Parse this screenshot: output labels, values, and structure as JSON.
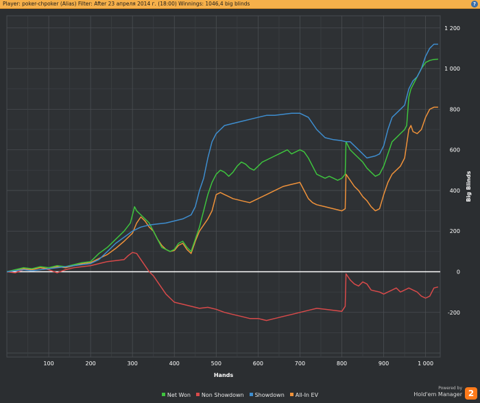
{
  "header": {
    "title": "Player: poker-chpoker (Alias) Filter: After 23 апреля 2014 г. (18:00) Winnings: 1046,4 big blinds",
    "help_label": "?"
  },
  "brand": {
    "powered_by": "Powered by",
    "name": "Hold'em Manager",
    "logo_text": "2"
  },
  "chart_data": {
    "type": "line",
    "xlabel": "Hands",
    "ylabel": "Big Blinds",
    "xlim": [
      0,
      1035
    ],
    "ylim": [
      -420,
      1260
    ],
    "x_ticks": [
      100,
      200,
      300,
      400,
      500,
      600,
      700,
      800,
      900,
      1000
    ],
    "x_tick_labels": [
      "100",
      "200",
      "300",
      "400",
      "500",
      "600",
      "700",
      "800",
      "900",
      "1 000"
    ],
    "y_ticks": [
      -200,
      0,
      200,
      400,
      600,
      800,
      1000,
      1200
    ],
    "y_tick_labels": [
      "-200",
      "0",
      "200",
      "400",
      "600",
      "800",
      "1 000",
      "1 200"
    ],
    "grid": true,
    "legend_position": "bottom",
    "zero_line": true,
    "series": [
      {
        "name": "Net Won",
        "color": "#3ec43e",
        "x": [
          0,
          20,
          40,
          60,
          80,
          100,
          120,
          140,
          160,
          180,
          200,
          210,
          220,
          240,
          260,
          280,
          295,
          300,
          305,
          310,
          320,
          330,
          340,
          350,
          360,
          370,
          380,
          390,
          400,
          410,
          420,
          430,
          440,
          450,
          460,
          465,
          470,
          475,
          480,
          490,
          500,
          510,
          520,
          530,
          540,
          550,
          560,
          570,
          580,
          590,
          600,
          610,
          620,
          630,
          640,
          650,
          660,
          670,
          680,
          690,
          700,
          710,
          720,
          730,
          740,
          750,
          760,
          770,
          780,
          790,
          800,
          808,
          810,
          820,
          830,
          840,
          850,
          860,
          870,
          880,
          890,
          900,
          910,
          920,
          930,
          940,
          950,
          955,
          960,
          965,
          970,
          980,
          990,
          1000,
          1010,
          1020,
          1030
        ],
        "y": [
          0,
          10,
          20,
          15,
          25,
          20,
          30,
          25,
          35,
          45,
          50,
          70,
          90,
          120,
          160,
          200,
          240,
          280,
          320,
          300,
          280,
          260,
          240,
          200,
          160,
          120,
          110,
          100,
          110,
          140,
          150,
          120,
          100,
          160,
          220,
          260,
          300,
          340,
          380,
          440,
          480,
          500,
          490,
          470,
          490,
          520,
          540,
          530,
          510,
          500,
          520,
          540,
          550,
          560,
          570,
          580,
          590,
          600,
          580,
          590,
          600,
          590,
          560,
          520,
          480,
          470,
          460,
          470,
          460,
          450,
          460,
          480,
          640,
          600,
          580,
          560,
          540,
          510,
          490,
          470,
          480,
          520,
          580,
          640,
          660,
          680,
          700,
          720,
          860,
          900,
          920,
          960,
          1000,
          1030,
          1040,
          1045,
          1046
        ]
      },
      {
        "name": "Non Showdown",
        "color": "#d94a4a",
        "x": [
          0,
          20,
          40,
          60,
          80,
          100,
          120,
          140,
          160,
          180,
          200,
          220,
          240,
          260,
          280,
          290,
          300,
          310,
          320,
          330,
          340,
          350,
          360,
          370,
          380,
          390,
          400,
          420,
          440,
          460,
          480,
          500,
          520,
          540,
          560,
          580,
          600,
          620,
          640,
          660,
          680,
          700,
          720,
          740,
          760,
          780,
          800,
          808,
          810,
          820,
          830,
          840,
          850,
          860,
          870,
          880,
          890,
          900,
          910,
          920,
          930,
          940,
          950,
          960,
          970,
          980,
          990,
          1000,
          1010,
          1020,
          1030
        ],
        "y": [
          0,
          -5,
          10,
          15,
          20,
          10,
          -5,
          10,
          20,
          25,
          30,
          40,
          50,
          55,
          60,
          80,
          95,
          90,
          60,
          30,
          0,
          -20,
          -50,
          -80,
          -110,
          -130,
          -150,
          -160,
          -170,
          -180,
          -175,
          -185,
          -200,
          -210,
          -220,
          -230,
          -230,
          -240,
          -230,
          -220,
          -210,
          -200,
          -190,
          -180,
          -185,
          -190,
          -195,
          -170,
          -10,
          -40,
          -60,
          -70,
          -50,
          -60,
          -90,
          -95,
          -100,
          -110,
          -100,
          -90,
          -80,
          -100,
          -90,
          -80,
          -90,
          -100,
          -120,
          -130,
          -120,
          -80,
          -75
        ]
      },
      {
        "name": "Showdown",
        "color": "#3e8ed0",
        "x": [
          0,
          20,
          40,
          60,
          80,
          100,
          120,
          140,
          160,
          180,
          200,
          220,
          240,
          260,
          280,
          300,
          320,
          340,
          360,
          380,
          400,
          420,
          440,
          450,
          460,
          470,
          480,
          490,
          500,
          510,
          520,
          540,
          560,
          580,
          600,
          620,
          640,
          660,
          680,
          700,
          720,
          740,
          760,
          780,
          800,
          810,
          820,
          840,
          860,
          880,
          890,
          900,
          910,
          920,
          930,
          940,
          950,
          960,
          970,
          980,
          990,
          1000,
          1010,
          1020,
          1030
        ],
        "y": [
          0,
          5,
          10,
          5,
          10,
          15,
          20,
          25,
          30,
          35,
          40,
          60,
          100,
          140,
          170,
          200,
          220,
          230,
          235,
          240,
          250,
          260,
          280,
          320,
          400,
          460,
          560,
          640,
          680,
          700,
          720,
          730,
          740,
          750,
          760,
          770,
          770,
          775,
          780,
          780,
          760,
          700,
          660,
          650,
          645,
          640,
          640,
          600,
          560,
          570,
          580,
          620,
          700,
          760,
          780,
          800,
          820,
          900,
          940,
          960,
          1000,
          1060,
          1100,
          1120,
          1120
        ]
      },
      {
        "name": "All-In EV",
        "color": "#f0923a",
        "x": [
          0,
          20,
          40,
          60,
          80,
          100,
          120,
          140,
          160,
          180,
          200,
          220,
          240,
          260,
          280,
          300,
          310,
          320,
          330,
          340,
          350,
          360,
          370,
          380,
          390,
          400,
          410,
          420,
          430,
          440,
          450,
          460,
          470,
          480,
          490,
          500,
          510,
          520,
          530,
          540,
          560,
          580,
          600,
          620,
          640,
          660,
          680,
          700,
          710,
          720,
          730,
          740,
          760,
          780,
          800,
          808,
          810,
          820,
          830,
          840,
          850,
          860,
          870,
          880,
          890,
          900,
          910,
          920,
          930,
          940,
          950,
          960,
          965,
          970,
          980,
          990,
          1000,
          1010,
          1020,
          1030
        ],
        "y": [
          0,
          5,
          15,
          10,
          20,
          15,
          25,
          20,
          30,
          40,
          45,
          65,
          85,
          115,
          150,
          190,
          240,
          270,
          250,
          220,
          200,
          160,
          130,
          110,
          100,
          105,
          130,
          140,
          110,
          90,
          150,
          200,
          230,
          260,
          300,
          380,
          390,
          380,
          370,
          360,
          350,
          340,
          360,
          380,
          400,
          420,
          430,
          440,
          400,
          360,
          340,
          330,
          320,
          310,
          300,
          310,
          480,
          450,
          420,
          400,
          370,
          350,
          320,
          300,
          310,
          380,
          440,
          480,
          500,
          520,
          560,
          700,
          720,
          690,
          680,
          700,
          760,
          800,
          810,
          810
        ]
      }
    ]
  }
}
